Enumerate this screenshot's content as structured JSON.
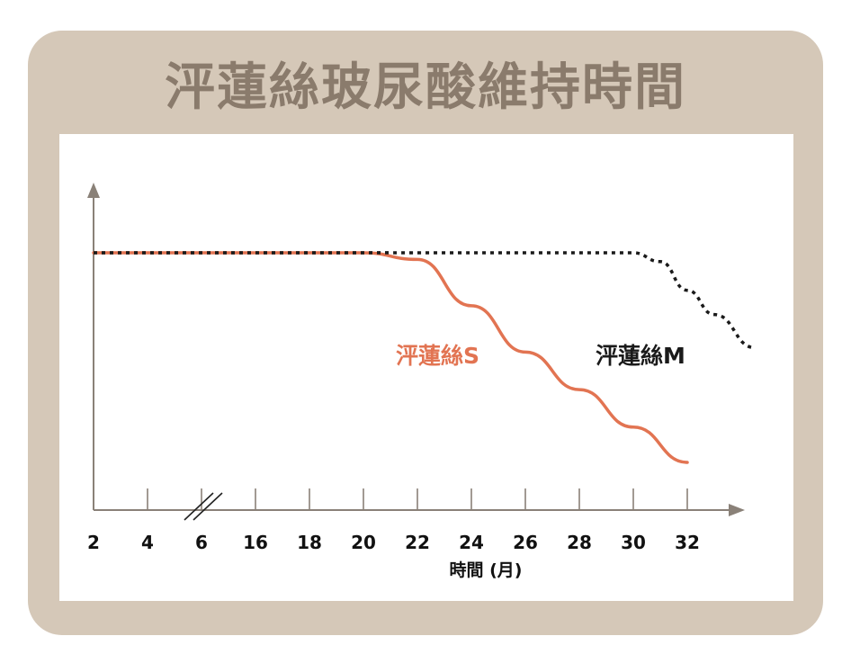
{
  "title": "泙蓮絲玻尿酸維持時間",
  "colors": {
    "frame": "#d5c8b8",
    "title": "#8a7b6c",
    "axis": "#8a8178",
    "series_s": "#e27452",
    "series_m": "#1a1a1a"
  },
  "chart_data": {
    "type": "line",
    "xlabel": "時間 (月)",
    "ylabel": "",
    "categories": [
      "2",
      "4",
      "6",
      "16",
      "18",
      "20",
      "22",
      "24",
      "26",
      "28",
      "30",
      "32"
    ],
    "axis_break": "between 4 and 16",
    "grid": false,
    "series": [
      {
        "name": "泙蓮絲S",
        "style": "solid",
        "color": "#e27452",
        "points": [
          [
            2,
            1.0
          ],
          [
            20,
            1.0
          ],
          [
            22,
            0.97
          ],
          [
            24,
            0.76
          ],
          [
            26,
            0.55
          ],
          [
            28,
            0.38
          ],
          [
            30,
            0.21
          ],
          [
            32,
            0.05
          ]
        ]
      },
      {
        "name": "泙蓮絲M",
        "style": "dotted",
        "color": "#1a1a1a",
        "points": [
          [
            2,
            1.0
          ],
          [
            20,
            1.0
          ],
          [
            30,
            1.0
          ],
          [
            31,
            0.96
          ],
          [
            32,
            0.83
          ],
          [
            33,
            0.72
          ],
          [
            34.5,
            0.57
          ]
        ]
      }
    ]
  }
}
